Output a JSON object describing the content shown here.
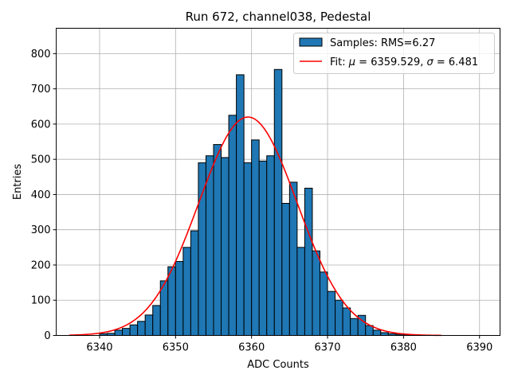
{
  "chart_data": {
    "type": "bar",
    "title": "Run 672, channel038, Pedestal",
    "xlabel": "ADC Counts",
    "ylabel": "Entries",
    "xlim": [
      6334.3,
      6392.7
    ],
    "ylim": [
      0,
      872
    ],
    "x_ticks": [
      6340,
      6350,
      6360,
      6370,
      6380,
      6390
    ],
    "y_ticks": [
      0,
      100,
      200,
      300,
      400,
      500,
      600,
      700,
      800
    ],
    "grid": true,
    "legend_position": "top-right",
    "histogram": {
      "name": "Samples: RMS=6.27",
      "color": "#1f77b4",
      "bin_start": 6336,
      "bin_width": 1,
      "counts": [
        0,
        0,
        0,
        0,
        5,
        6,
        15,
        20,
        30,
        40,
        58,
        85,
        155,
        195,
        210,
        250,
        297,
        490,
        510,
        542,
        505,
        625,
        740,
        490,
        555,
        495,
        510,
        755,
        375,
        435,
        250,
        418,
        240,
        180,
        125,
        100,
        78,
        48,
        57,
        28,
        15,
        8,
        5,
        3,
        2,
        1,
        1,
        0,
        0
      ]
    },
    "fit": {
      "label": "Fit: μ = 6359.529, σ = 6.481",
      "label_prefix": "Fit: ",
      "mu_symbol": "μ",
      "sigma_symbol": "σ",
      "mu_text": " = 6359.529, ",
      "sigma_text": " = 6.481",
      "mu": 6359.529,
      "sigma": 6.481,
      "amplitude": 620,
      "x_range": [
        6336,
        6385
      ],
      "color": "#ff0000"
    }
  }
}
